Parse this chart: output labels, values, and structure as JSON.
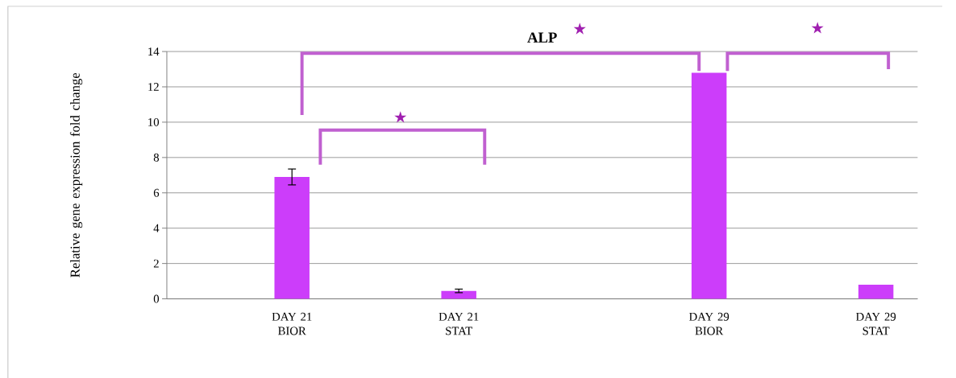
{
  "chart_data": {
    "type": "bar",
    "title": "ALP",
    "ylabel": "Relative gene expression fold change",
    "categories": [
      null,
      "DAY 21 BIOR",
      null,
      "DAY 21 STAT",
      null,
      null,
      "DAY 29 BIOR",
      null,
      "DAY 29 STAT"
    ],
    "values": [
      null,
      6.9,
      null,
      0.45,
      null,
      null,
      12.8,
      null,
      0.8
    ],
    "errors": [
      null,
      0.45,
      null,
      0.1,
      null,
      null,
      null,
      null,
      null
    ],
    "color": "#cc3dfa",
    "ylim": [
      0,
      14
    ],
    "yticks": [
      0,
      2,
      4,
      6,
      8,
      10,
      12,
      14
    ],
    "grid": "y",
    "annotations": [
      "★",
      "★",
      "★"
    ]
  }
}
